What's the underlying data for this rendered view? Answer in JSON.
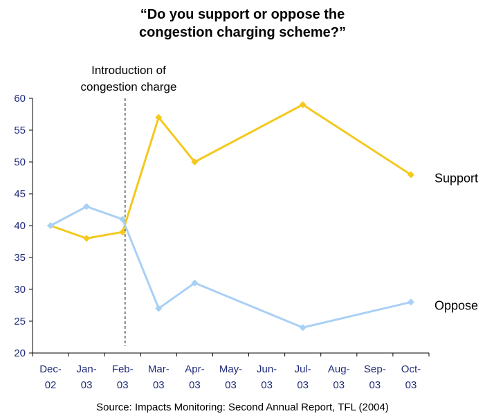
{
  "title_line1": "“Do you support or oppose the",
  "title_line2": "congestion charging scheme?”",
  "source": "Source: Impacts Monitoring: Second Annual Report, TFL (2004)",
  "colors": {
    "support": "#F4C81E",
    "oppose": "#A9D0F5",
    "axis": "#000000",
    "tick_text": "#1F2A7A"
  },
  "chart_data": {
    "type": "line",
    "title": "“Do you support or oppose the congestion charging scheme?”",
    "x_labels": [
      [
        "Dec-",
        "02"
      ],
      [
        "Jan-",
        "03"
      ],
      [
        "Feb-",
        "03"
      ],
      [
        "Mar-",
        "03"
      ],
      [
        "Apr-",
        "03"
      ],
      [
        "May-",
        "03"
      ],
      [
        "Jun-",
        "03"
      ],
      [
        "Jul-",
        "03"
      ],
      [
        "Aug-",
        "03"
      ],
      [
        "Sep-",
        "03"
      ],
      [
        "Oct-",
        "03"
      ]
    ],
    "ylim": [
      20,
      60
    ],
    "yticks": [
      20,
      25,
      30,
      35,
      40,
      45,
      50,
      55,
      60
    ],
    "grid": false,
    "series": [
      {
        "name": "Support",
        "points": [
          [
            0,
            40
          ],
          [
            1,
            38
          ],
          [
            2,
            39
          ],
          [
            3,
            57
          ],
          [
            4,
            50
          ],
          [
            7,
            59
          ],
          [
            10,
            48
          ]
        ]
      },
      {
        "name": "Oppose",
        "points": [
          [
            0,
            40
          ],
          [
            1,
            43
          ],
          [
            2,
            41
          ],
          [
            3,
            27
          ],
          [
            4,
            31
          ],
          [
            7,
            24
          ],
          [
            10,
            28
          ]
        ]
      }
    ],
    "annotation": {
      "line1": "Introduction of",
      "line2": "congestion charge",
      "x": 2.07
    }
  }
}
